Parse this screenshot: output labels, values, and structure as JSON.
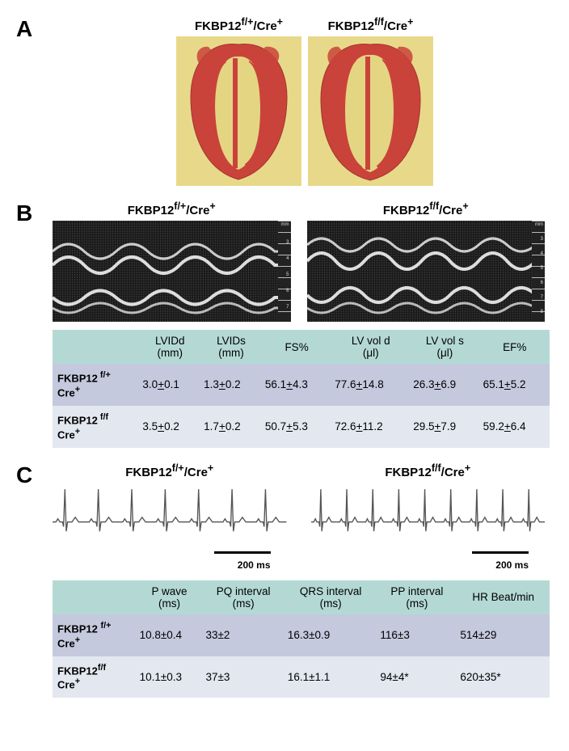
{
  "panelA": {
    "label": "A",
    "cols": [
      {
        "title_html": "FKBP12<sup>f/+</sup>/Cre<sup>+</sup>"
      },
      {
        "title_html": "FKBP12<sup>f/f</sup>/Cre<sup>+</sup>"
      }
    ],
    "histology": {
      "bg_color": "#e8d98a",
      "heart_fill": "#c9433a",
      "heart_edge": "#a2352e"
    }
  },
  "panelB": {
    "label": "B",
    "cols": [
      {
        "title_html": "FKBP12<sup>f/+</sup>/Cre<sup>+</sup>"
      },
      {
        "title_html": "FKBP12<sup>f/f</sup>/Cre<sup>+</sup>"
      }
    ],
    "ruler_marks": [
      "mm",
      "3",
      "4",
      "5",
      "6",
      "7"
    ],
    "ruler_marks_right": [
      "mm",
      "3",
      "4",
      "5",
      "6",
      "7",
      "8"
    ],
    "table": {
      "headers": [
        "",
        "LVIDd (mm)",
        "LVIDs (mm)",
        "FS%",
        "LV vol d (μl)",
        "LV vol s (μl)",
        "EF%"
      ],
      "rows": [
        {
          "head_html": "FKBP12<sup> f/+</sup><br>Cre<sup>+</sup>",
          "cells": [
            "3.0±0.1",
            "1.3±0.2",
            "56.1±4.3",
            "77.6±14.8",
            "26.3±6.9",
            "65.1±5.2"
          ]
        },
        {
          "head_html": "FKBP12<sup> f/f</sup><br>Cre<sup>+</sup>",
          "cells": [
            "3.5±0.2",
            "1.7±0.2",
            "50.7±5.3",
            "72.6±11.2",
            "29.5±7.9",
            "59.2±6.4"
          ]
        }
      ],
      "cell_underline_plus": true
    }
  },
  "panelC": {
    "label": "C",
    "cols": [
      {
        "title_html": "FKBP12<sup>f/+</sup>/Cre<sup>+</sup>"
      },
      {
        "title_html": "FKBP12<sup>f/f</sup>/Cre<sup>+</sup>"
      }
    ],
    "scalebar": "200 ms",
    "ecg": {
      "stroke": "#555555",
      "stroke_width": 1.4,
      "left_beats": 7,
      "right_beats": 9
    },
    "table": {
      "headers": [
        "",
        "P  wave (ms)",
        "PQ interval (ms)",
        "QRS interval (ms)",
        "PP interval (ms)",
        "HR Beat/min"
      ],
      "rows": [
        {
          "head_html": "FKBP12 <sup>f/+</sup><br>Cre<sup>+</sup>",
          "cells": [
            "10.8±0.4",
            "33±2",
            "16.3±0.9",
            "116±3",
            "514±29"
          ]
        },
        {
          "head_html": "FKBP12<sup>f/f</sup><br>Cre<sup>+</sup>",
          "cells": [
            "10.1±0.3",
            "37±3",
            "16.1±1.1",
            "94±4*",
            "620±35*"
          ]
        }
      ]
    }
  },
  "style": {
    "header_bg": "#b4d9d4",
    "row_a_bg": "#c4c9dd",
    "row_b_bg": "#e3e7f0",
    "label_fontsize": 28
  }
}
